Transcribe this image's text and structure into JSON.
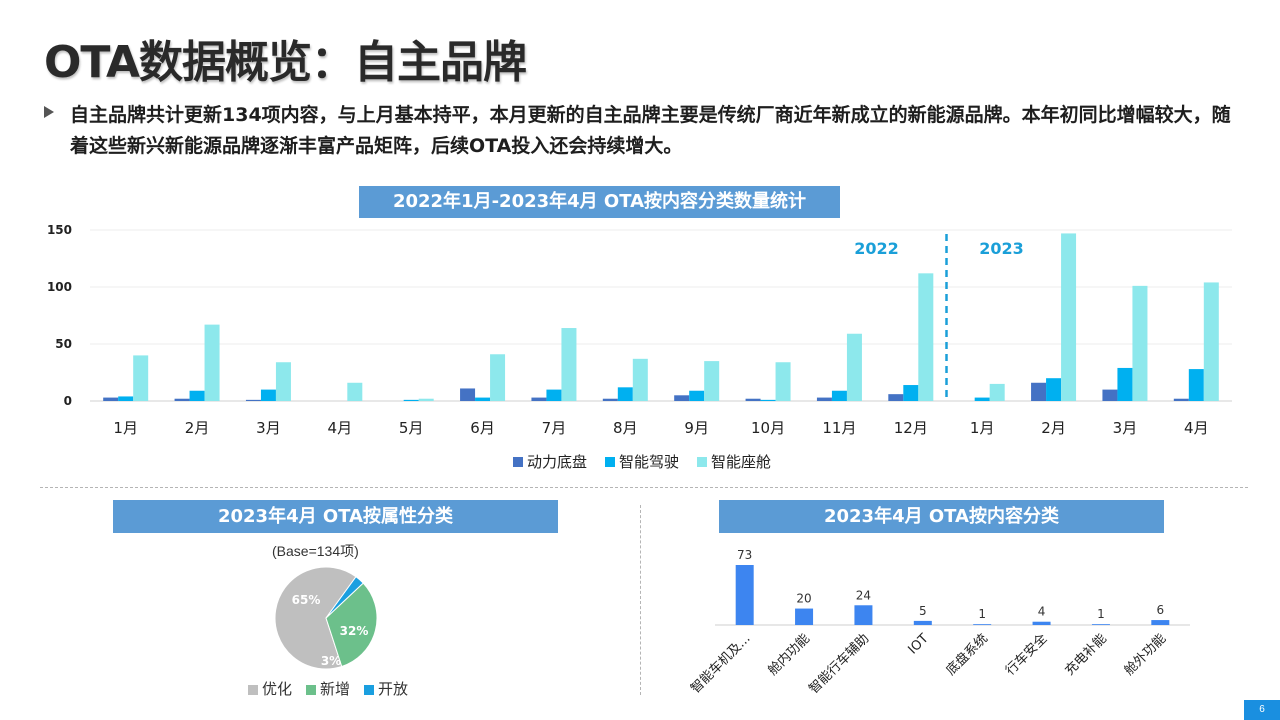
{
  "page": {
    "title": "OTA数据概览：自主品牌",
    "bullet": "自主品牌共计更新134项内容，与上月基本持平，本月更新的自主品牌主要是传统厂商近年新成立的新能源品牌。本年初同比增幅较大，随着这些新兴新能源品牌逐渐丰富产品矩阵，后续OTA投入还会持续增大。",
    "page_number": "6"
  },
  "colors": {
    "banner": "#5b9bd5",
    "powertrain": "#4472c4",
    "driving": "#00b0f0",
    "cockpit": "#8de8ec",
    "year_label": "#1a9fd8",
    "pie_opt": "#bfbfbf",
    "pie_new": "#6cc08b",
    "pie_open": "#1a9fe0",
    "bar2": "#3d85f0"
  },
  "chart_data": [
    {
      "type": "bar",
      "title": "2022年1月-2023年4月 OTA按内容分类数量统计",
      "categories": [
        "1月",
        "2月",
        "3月",
        "4月",
        "5月",
        "6月",
        "7月",
        "8月",
        "9月",
        "10月",
        "11月",
        "12月",
        "1月",
        "2月",
        "3月",
        "4月"
      ],
      "year_labels": [
        "2022",
        "2023"
      ],
      "ylim": [
        0,
        150
      ],
      "yticks": [
        0,
        50,
        100,
        150
      ],
      "grid": true,
      "legend": "bottom",
      "series": [
        {
          "name": "动力底盘",
          "values": [
            3,
            2,
            1,
            0,
            0,
            11,
            3,
            2,
            5,
            2,
            3,
            6,
            0,
            16,
            10,
            2
          ]
        },
        {
          "name": "智能驾驶",
          "values": [
            4,
            9,
            10,
            0,
            1,
            3,
            10,
            12,
            9,
            1,
            9,
            14,
            3,
            20,
            29,
            28
          ]
        },
        {
          "name": "智能座舱",
          "values": [
            40,
            67,
            34,
            16,
            2,
            41,
            64,
            37,
            35,
            34,
            59,
            112,
            15,
            147,
            101,
            104
          ]
        }
      ]
    },
    {
      "type": "pie",
      "title": "2023年4月 OTA按属性分类",
      "subtitle": "(Base=134项)",
      "legend": "bottom",
      "slices": [
        {
          "name": "优化",
          "value": 65,
          "label": "65%"
        },
        {
          "name": "新增",
          "value": 32,
          "label": "32%"
        },
        {
          "name": "开放",
          "value": 3,
          "label": "3%"
        }
      ]
    },
    {
      "type": "bar",
      "title": "2023年4月 OTA按内容分类",
      "categories": [
        "智能车机及...",
        "舱内功能",
        "智能行车辅助",
        "IOT",
        "底盘系统",
        "行车安全",
        "充电补能",
        "舱外功能"
      ],
      "values": [
        73,
        20,
        24,
        5,
        1,
        4,
        1,
        6
      ]
    }
  ]
}
